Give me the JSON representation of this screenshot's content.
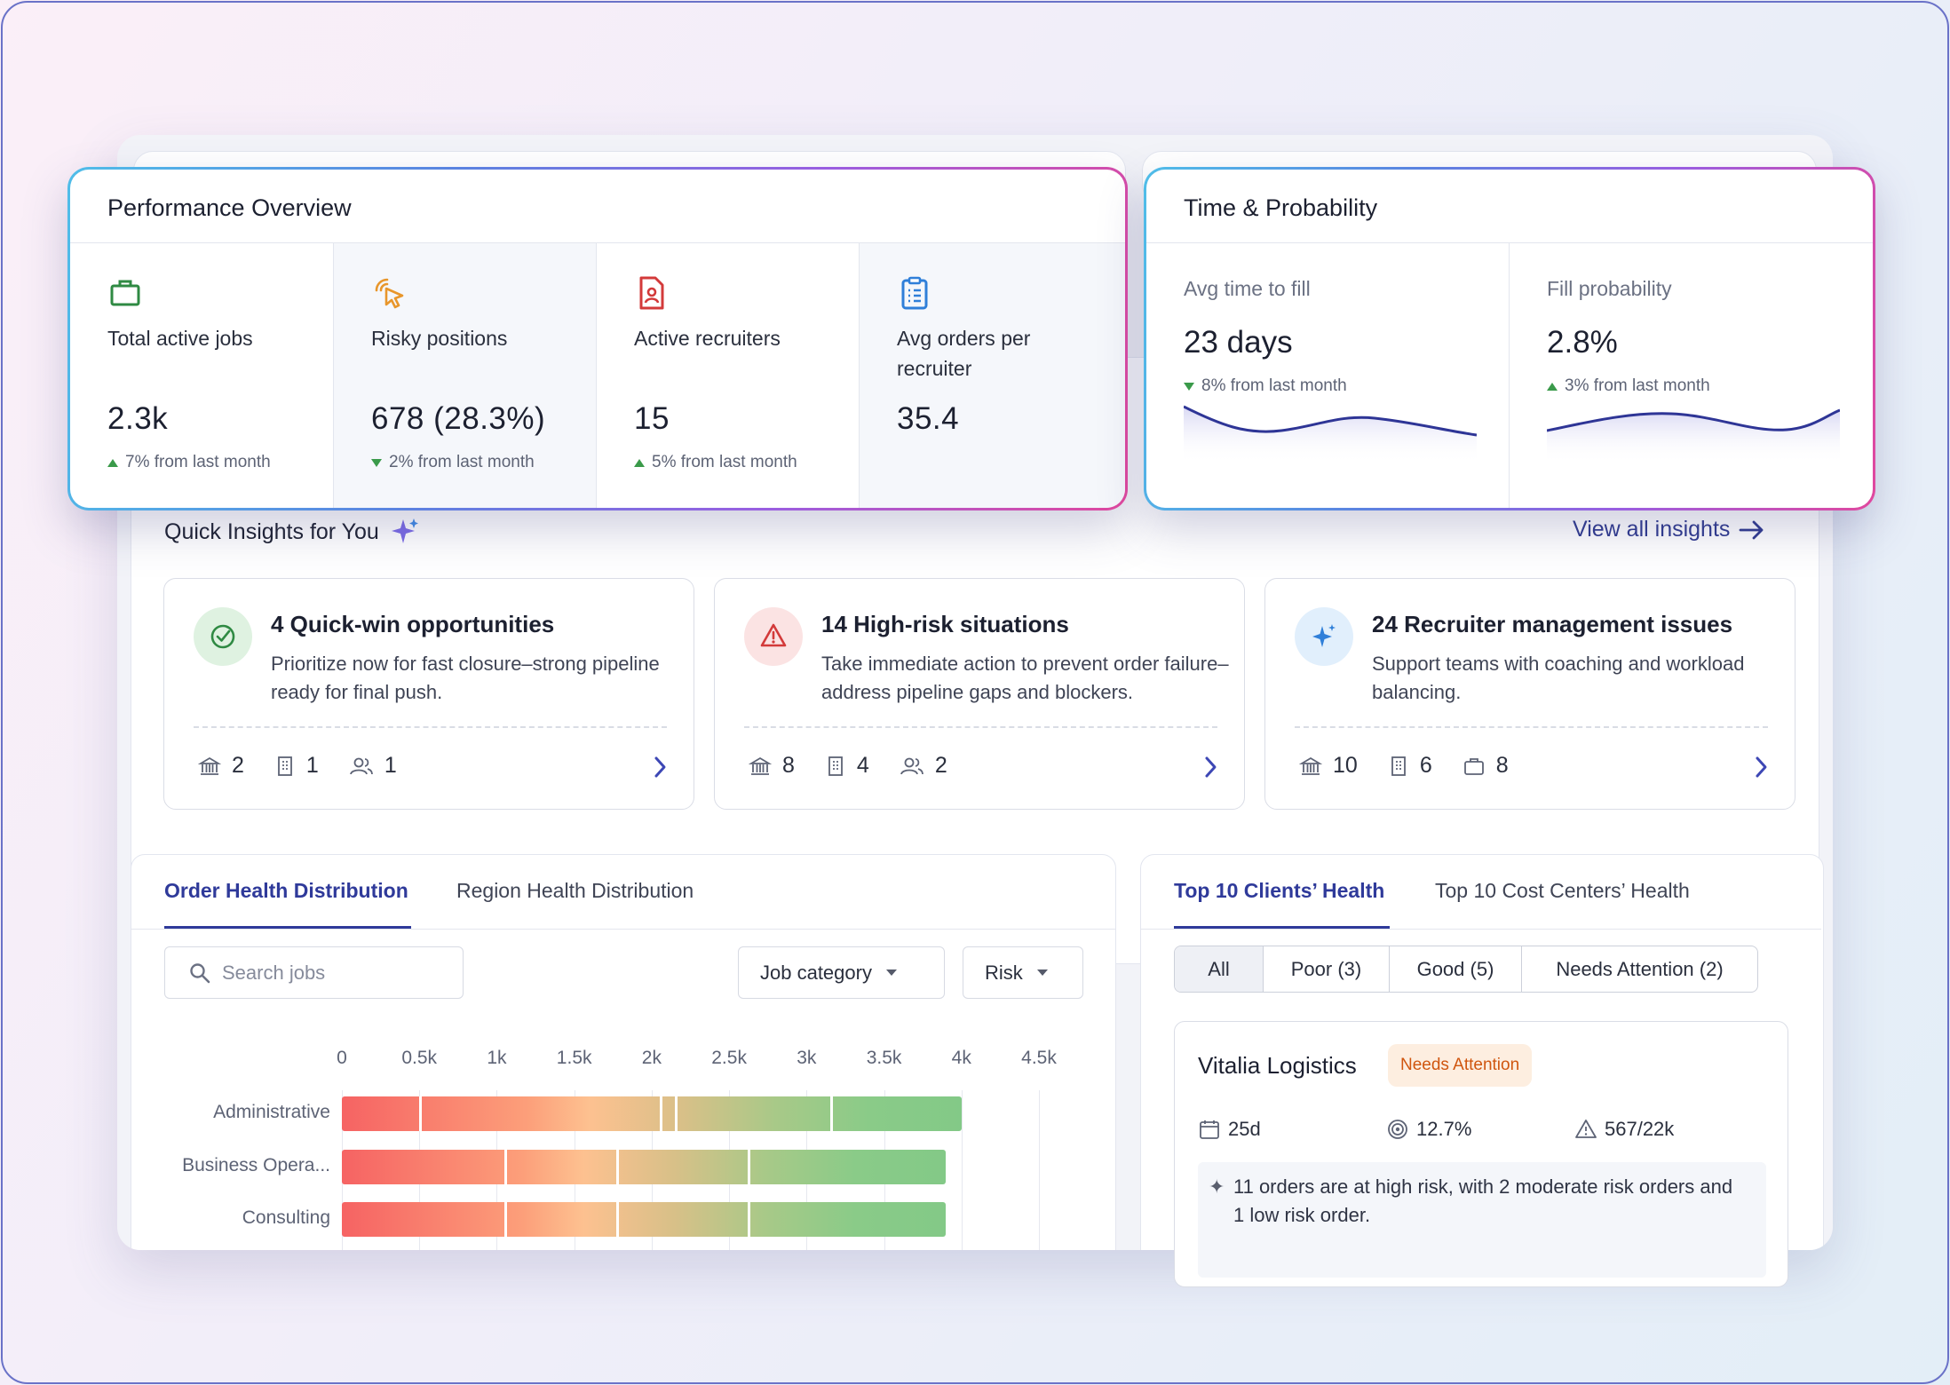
{
  "performance": {
    "title": "Performance Overview",
    "metrics": [
      {
        "label": "Total active jobs",
        "value": "2.3k",
        "delta": "7% from last month",
        "trend": "up",
        "icon": "briefcase-icon"
      },
      {
        "label": "Risky positions",
        "value": "678 (28.3%)",
        "delta": "2% from last month",
        "trend": "down",
        "icon": "cursor-click-icon"
      },
      {
        "label": "Active recruiters",
        "value": "15",
        "delta": "5% from last month",
        "trend": "up",
        "icon": "recruiter-file-icon"
      },
      {
        "label": "Avg orders per recruiter",
        "value": "35.4",
        "icon": "clipboard-list-icon"
      }
    ]
  },
  "time_probability": {
    "title": "Time & Probability",
    "items": [
      {
        "label": "Avg time to fill",
        "value": "23 days",
        "delta": "8% from last month",
        "trend": "down"
      },
      {
        "label": "Fill probability",
        "value": "2.8%",
        "delta": "3% from last month",
        "trend": "up"
      }
    ]
  },
  "insights": {
    "title": "Quick Insights for You",
    "view_all": "View all insights",
    "cards": [
      {
        "title": "4 Quick-win opportunities",
        "desc": "Prioritize now for fast closure–strong pipeline ready for final push.",
        "icon": "check-circle-icon",
        "stats": [
          "2",
          "1",
          "1"
        ]
      },
      {
        "title": "14 High-risk situations",
        "desc": "Take immediate action to prevent order failure–address pipeline gaps and blockers.",
        "icon": "warning-icon",
        "stats": [
          "8",
          "4",
          "2"
        ]
      },
      {
        "title": "24 Recruiter management issues",
        "desc": "Support teams with coaching and workload balancing.",
        "icon": "sparkle-icon",
        "stats": [
          "10",
          "6",
          "8"
        ]
      }
    ]
  },
  "order_health": {
    "tabs": [
      "Order Health Distribution",
      "Region Health Distribution"
    ],
    "search_placeholder": "Search jobs",
    "filters": [
      "Job category",
      "Risk"
    ]
  },
  "chart_data": {
    "type": "bar",
    "orientation": "horizontal",
    "stacked": true,
    "ticks": [
      "0",
      "0.5k",
      "1k",
      "1.5k",
      "2k",
      "2.5k",
      "3k",
      "3.5k",
      "4k",
      "4.5k"
    ],
    "xlim": [
      0,
      4500
    ],
    "categories": [
      "Administrative",
      "Business Opera...",
      "Consulting"
    ],
    "totals": [
      4000,
      3900,
      3900
    ],
    "segment_boundaries": [
      [
        500,
        2050,
        2150,
        3150
      ],
      [
        1050,
        1770,
        2620
      ],
      [
        1050,
        1770,
        2620
      ]
    ]
  },
  "clients": {
    "tabs": [
      "Top 10 Clients’ Health",
      "Top 10 Cost Centers’ Health"
    ],
    "filters": [
      "All",
      "Poor (3)",
      "Good (5)",
      "Needs Attention (2)"
    ],
    "card": {
      "name": "Vitalia Logistics",
      "status": "Needs Attention",
      "days": "25d",
      "rate": "12.7%",
      "risk": "567/22k",
      "summary": "11 orders are at high risk, with 2 moderate risk orders and 1 low risk order."
    }
  },
  "colors": {
    "accent": "#2f3a9a",
    "up": "#3a9a4a",
    "warning": "#d0560f"
  }
}
